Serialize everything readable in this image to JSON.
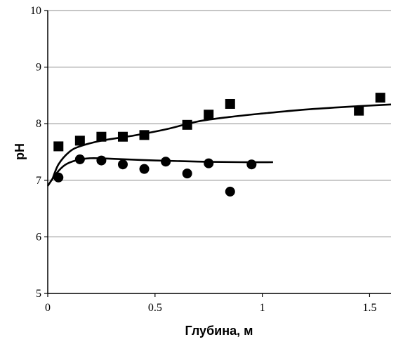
{
  "chart_data": {
    "type": "scatter",
    "title": "",
    "xlabel": "Глубина, м",
    "ylabel": "pH",
    "xlim": [
      0,
      1.6
    ],
    "ylim": [
      5,
      10
    ],
    "x_ticks": [
      0,
      0.5,
      1,
      1.5
    ],
    "x_tick_labels": [
      "0",
      "0.5",
      "1",
      "1.5"
    ],
    "y_ticks": [
      5,
      6,
      7,
      8,
      9,
      10
    ],
    "y_tick_labels": [
      "5",
      "6",
      "7",
      "8",
      "9",
      "10"
    ],
    "grid": "horizontal",
    "legend": "none",
    "series": [
      {
        "marker": "square",
        "color": "#000000",
        "points": [
          {
            "x": 0.05,
            "y": 7.6
          },
          {
            "x": 0.15,
            "y": 7.7
          },
          {
            "x": 0.25,
            "y": 7.77
          },
          {
            "x": 0.35,
            "y": 7.77
          },
          {
            "x": 0.45,
            "y": 7.8
          },
          {
            "x": 0.65,
            "y": 7.98
          },
          {
            "x": 0.75,
            "y": 8.16
          },
          {
            "x": 0.85,
            "y": 8.35
          },
          {
            "x": 1.45,
            "y": 8.23
          },
          {
            "x": 1.55,
            "y": 8.46
          }
        ],
        "trend": [
          {
            "x": 0.02,
            "y": 7.0
          },
          {
            "x": 0.05,
            "y": 7.28
          },
          {
            "x": 0.1,
            "y": 7.5
          },
          {
            "x": 0.15,
            "y": 7.6
          },
          {
            "x": 0.25,
            "y": 7.7
          },
          {
            "x": 0.4,
            "y": 7.79
          },
          {
            "x": 0.55,
            "y": 7.9
          },
          {
            "x": 0.7,
            "y": 8.04
          },
          {
            "x": 0.85,
            "y": 8.12
          },
          {
            "x": 1.0,
            "y": 8.18
          },
          {
            "x": 1.2,
            "y": 8.25
          },
          {
            "x": 1.4,
            "y": 8.3
          },
          {
            "x": 1.6,
            "y": 8.34
          }
        ]
      },
      {
        "marker": "circle",
        "color": "#000000",
        "points": [
          {
            "x": 0.05,
            "y": 7.05
          },
          {
            "x": 0.15,
            "y": 7.37
          },
          {
            "x": 0.25,
            "y": 7.35
          },
          {
            "x": 0.35,
            "y": 7.28
          },
          {
            "x": 0.45,
            "y": 7.2
          },
          {
            "x": 0.55,
            "y": 7.33
          },
          {
            "x": 0.65,
            "y": 7.12
          },
          {
            "x": 0.75,
            "y": 7.3
          },
          {
            "x": 0.85,
            "y": 6.8
          },
          {
            "x": 0.95,
            "y": 7.28
          }
        ],
        "trend": [
          {
            "x": 0.0,
            "y": 6.9
          },
          {
            "x": 0.04,
            "y": 7.12
          },
          {
            "x": 0.08,
            "y": 7.27
          },
          {
            "x": 0.13,
            "y": 7.35
          },
          {
            "x": 0.2,
            "y": 7.39
          },
          {
            "x": 0.3,
            "y": 7.38
          },
          {
            "x": 0.5,
            "y": 7.35
          },
          {
            "x": 0.7,
            "y": 7.33
          },
          {
            "x": 0.9,
            "y": 7.32
          },
          {
            "x": 1.05,
            "y": 7.32
          }
        ]
      }
    ]
  }
}
